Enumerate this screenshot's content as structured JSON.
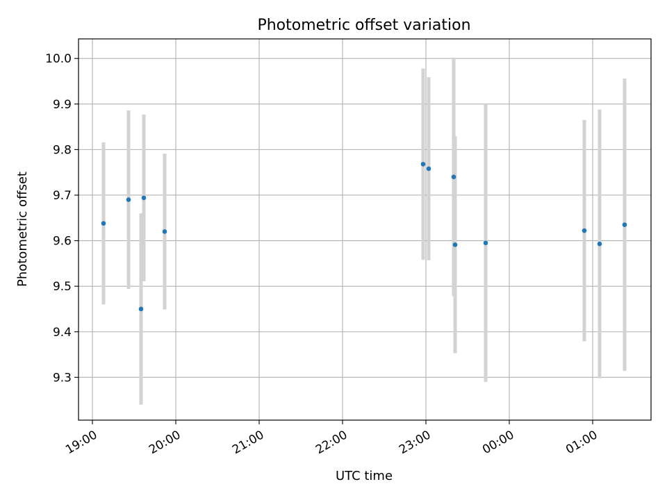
{
  "chart_data": {
    "type": "scatter",
    "title": "Photometric offset variation",
    "xlabel": "UTC time",
    "ylabel": "Photometric offset",
    "x_unit": "UTC clock time (hours after 19:00 wrap past midnight)",
    "xlim": [
      "18:50",
      "01:42"
    ],
    "ylim": [
      9.206,
      10.043
    ],
    "xticks": [
      "19:00",
      "20:00",
      "21:00",
      "22:00",
      "23:00",
      "00:00",
      "01:00"
    ],
    "yticks": [
      "9.3",
      "9.4",
      "9.5",
      "9.6",
      "9.7",
      "9.8",
      "9.9",
      "10.0"
    ],
    "grid": true,
    "colors": {
      "point": "#1f77b4",
      "errorbar": "#d3d3d3",
      "grid": "#b0b0b0",
      "frame": "#000000"
    },
    "points": [
      {
        "x": "19:08",
        "y": 9.638,
        "err": 0.178
      },
      {
        "x": "19:26",
        "y": 9.69,
        "err": 0.196
      },
      {
        "x": "19:35",
        "y": 9.45,
        "err": 0.21
      },
      {
        "x": "19:37",
        "y": 9.694,
        "err": 0.183
      },
      {
        "x": "19:52",
        "y": 9.62,
        "err": 0.171
      },
      {
        "x": "22:58",
        "y": 9.768,
        "err": 0.21
      },
      {
        "x": "23:02",
        "y": 9.758,
        "err": 0.201
      },
      {
        "x": "23:20",
        "y": 9.74,
        "err": 0.262
      },
      {
        "x": "23:21",
        "y": 9.591,
        "err": 0.238
      },
      {
        "x": "23:43",
        "y": 9.595,
        "err": 0.305
      },
      {
        "x": "00:54",
        "y": 9.622,
        "err": 0.243
      },
      {
        "x": "01:05",
        "y": 9.593,
        "err": 0.295
      },
      {
        "x": "01:23",
        "y": 9.635,
        "err": 0.321
      }
    ]
  }
}
